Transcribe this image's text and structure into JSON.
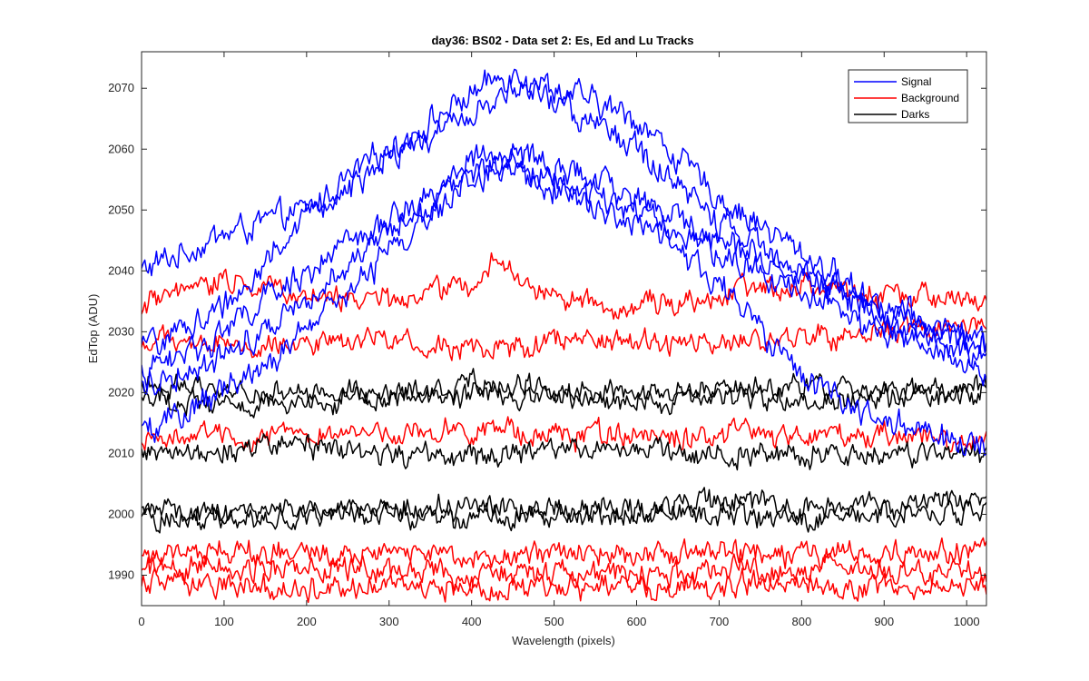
{
  "chart_data": {
    "type": "line",
    "title": "day36: BS02 - Data set 2: Es, Ed and Lu Tracks",
    "xlabel": "Wavelength (pixels)",
    "ylabel": "EdTop (ADU)",
    "xlim": [
      0,
      1024
    ],
    "ylim": [
      1985,
      2076
    ],
    "xticks": [
      0,
      100,
      200,
      300,
      400,
      500,
      600,
      700,
      800,
      900,
      1000
    ],
    "yticks": [
      1990,
      2000,
      2010,
      2020,
      2030,
      2040,
      2050,
      2060,
      2070
    ],
    "grid": false,
    "legend_position": "top-right",
    "legend": [
      {
        "label": "Signal",
        "color": "#0000ff"
      },
      {
        "label": "Background",
        "color": "#ff0000"
      },
      {
        "label": "Darks",
        "color": "#000000"
      }
    ],
    "series": [
      {
        "group": "Signal",
        "color": "#0000ff",
        "x": [
          0,
          100,
          200,
          300,
          400,
          450,
          500,
          600,
          700,
          800,
          900,
          1024
        ],
        "values": [
          2040,
          2046,
          2050,
          2060,
          2069,
          2073,
          2070,
          2065,
          2052,
          2043,
          2034,
          2028
        ]
      },
      {
        "group": "Signal",
        "color": "#0000ff",
        "x": [
          0,
          100,
          200,
          300,
          400,
          450,
          500,
          600,
          700,
          800,
          900,
          1024
        ],
        "values": [
          2027,
          2034,
          2049,
          2058,
          2066,
          2070,
          2068,
          2060,
          2048,
          2040,
          2032,
          2025
        ]
      },
      {
        "group": "Signal",
        "color": "#0000ff",
        "x": [
          0,
          100,
          200,
          300,
          400,
          450,
          500,
          600,
          700,
          800,
          900,
          1024
        ],
        "values": [
          2023,
          2030,
          2040,
          2048,
          2058,
          2059,
          2057,
          2052,
          2045,
          2040,
          2033,
          2028
        ]
      },
      {
        "group": "Signal",
        "color": "#0000ff",
        "x": [
          0,
          100,
          200,
          300,
          400,
          450,
          500,
          600,
          700,
          800,
          900,
          1024
        ],
        "values": [
          2021,
          2026,
          2036,
          2046,
          2056,
          2058,
          2055,
          2050,
          2043,
          2037,
          2030,
          2023
        ]
      },
      {
        "group": "Signal",
        "color": "#0000ff",
        "x": [
          0,
          100,
          200,
          300,
          400,
          450,
          500,
          600,
          700,
          800,
          900,
          1024
        ],
        "values": [
          2013,
          2020,
          2030,
          2043,
          2055,
          2057,
          2054,
          2048,
          2038,
          2022,
          2015,
          2011
        ]
      },
      {
        "group": "Background",
        "color": "#ff0000",
        "x": [
          0,
          100,
          200,
          300,
          400,
          430,
          500,
          600,
          700,
          800,
          900,
          1024
        ],
        "values": [
          2034,
          2039,
          2036,
          2035,
          2038,
          2042,
          2035,
          2034,
          2036,
          2038,
          2036,
          2035
        ]
      },
      {
        "group": "Background",
        "color": "#ff0000",
        "x": [
          0,
          100,
          200,
          300,
          400,
          500,
          600,
          700,
          800,
          900,
          1024
        ],
        "values": [
          2028,
          2028,
          2028,
          2029,
          2027,
          2028,
          2028,
          2028,
          2029,
          2030,
          2031
        ]
      },
      {
        "group": "Background",
        "color": "#ff0000",
        "x": [
          0,
          100,
          200,
          300,
          400,
          500,
          600,
          700,
          800,
          900,
          1024
        ],
        "values": [
          2013,
          2013,
          2013,
          2013,
          2014,
          2013,
          2013,
          2013,
          2013,
          2013,
          2012
        ]
      },
      {
        "group": "Background",
        "color": "#ff0000",
        "x": [
          0,
          100,
          200,
          300,
          400,
          500,
          600,
          700,
          800,
          900,
          1024
        ],
        "values": [
          1994,
          1994,
          1994,
          1994,
          1993,
          1994,
          1993,
          1994,
          1993,
          1994,
          1994
        ]
      },
      {
        "group": "Background",
        "color": "#ff0000",
        "x": [
          0,
          100,
          200,
          300,
          400,
          500,
          600,
          700,
          800,
          900,
          1024
        ],
        "values": [
          1991,
          1991,
          1991,
          1991,
          1990,
          1990,
          1990,
          1991,
          1991,
          1991,
          1990
        ]
      },
      {
        "group": "Background",
        "color": "#ff0000",
        "x": [
          0,
          100,
          200,
          300,
          400,
          500,
          600,
          700,
          800,
          900,
          1024
        ],
        "values": [
          1989,
          1988,
          1988,
          1988,
          1988,
          1988,
          1988,
          1988,
          1989,
          1988,
          1988
        ]
      },
      {
        "group": "Darks",
        "color": "#000000",
        "x": [
          0,
          100,
          200,
          300,
          400,
          500,
          600,
          700,
          800,
          900,
          1024
        ],
        "values": [
          2022,
          2020,
          2020,
          2020,
          2022,
          2020,
          2020,
          2021,
          2021,
          2020,
          2021
        ]
      },
      {
        "group": "Darks",
        "color": "#000000",
        "x": [
          0,
          100,
          200,
          300,
          400,
          500,
          600,
          700,
          800,
          900,
          1024
        ],
        "values": [
          2019,
          2018,
          2018,
          2019,
          2020,
          2019,
          2019,
          2019,
          2019,
          2019,
          2020
        ]
      },
      {
        "group": "Darks",
        "color": "#000000",
        "x": [
          0,
          100,
          200,
          300,
          400,
          500,
          600,
          700,
          800,
          900,
          1024
        ],
        "values": [
          2010,
          2010,
          2011,
          2010,
          2010,
          2010,
          2011,
          2010,
          2010,
          2010,
          2010
        ]
      },
      {
        "group": "Darks",
        "color": "#000000",
        "x": [
          0,
          100,
          200,
          300,
          400,
          500,
          600,
          700,
          800,
          900,
          1024
        ],
        "values": [
          2001,
          2000,
          2001,
          2001,
          2001,
          2001,
          2001,
          2002,
          2001,
          2001,
          2002
        ]
      },
      {
        "group": "Darks",
        "color": "#000000",
        "x": [
          0,
          100,
          200,
          300,
          400,
          500,
          600,
          700,
          800,
          900,
          1024
        ],
        "values": [
          1999,
          1999,
          2000,
          2000,
          1999,
          2000,
          2000,
          2000,
          1999,
          2000,
          2000
        ]
      }
    ]
  }
}
